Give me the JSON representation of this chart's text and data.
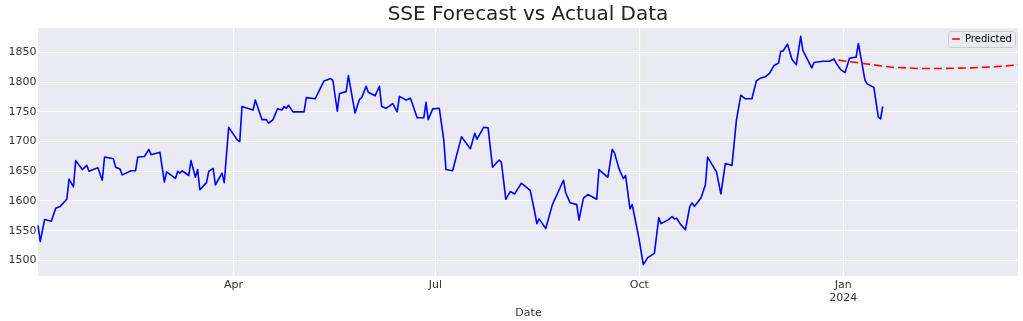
{
  "chart_data": {
    "type": "line",
    "title": "SSE Forecast vs Actual Data",
    "xlabel": "Date",
    "xlim": [
      "2023-01-03",
      "2024-03-20"
    ],
    "ylim": [
      1473,
      1890
    ],
    "xticks": [
      {
        "value": "2023-04-01",
        "label": "Apr"
      },
      {
        "value": "2023-07-01",
        "label": "Jul"
      },
      {
        "value": "2023-10-01",
        "label": "Oct"
      },
      {
        "value": "2024-01-01",
        "label": "Jan\n2024"
      }
    ],
    "yticks": [
      1500,
      1550,
      1600,
      1650,
      1700,
      1750,
      1800,
      1850
    ],
    "grid": true,
    "legend": "top right",
    "marker": "none",
    "series": [
      {
        "color": "#0000ff",
        "line_style": "solid",
        "x": [
          "2023-01-03",
          "2023-01-04",
          "2023-01-06",
          "2023-01-09",
          "2023-01-11",
          "2023-01-13",
          "2023-01-16",
          "2023-01-17",
          "2023-01-19",
          "2023-01-20",
          "2023-01-23",
          "2023-01-25",
          "2023-01-26",
          "2023-01-30",
          "2023-02-01",
          "2023-02-02",
          "2023-02-06",
          "2023-02-07",
          "2023-02-09",
          "2023-02-10",
          "2023-02-14",
          "2023-02-16",
          "2023-02-17",
          "2023-02-20",
          "2023-02-22",
          "2023-02-23",
          "2023-02-27",
          "2023-03-01",
          "2023-03-02",
          "2023-03-06",
          "2023-03-07",
          "2023-03-08",
          "2023-03-09",
          "2023-03-12",
          "2023-03-13",
          "2023-03-15",
          "2023-03-16",
          "2023-03-17",
          "2023-03-20",
          "2023-03-21",
          "2023-03-23",
          "2023-03-24",
          "2023-03-27",
          "2023-03-28",
          "2023-03-30",
          "2023-04-03",
          "2023-04-04",
          "2023-04-05",
          "2023-04-10",
          "2023-04-11",
          "2023-04-14",
          "2023-04-16",
          "2023-04-17",
          "2023-04-19",
          "2023-04-21",
          "2023-04-23",
          "2023-04-24",
          "2023-04-25",
          "2023-04-26",
          "2023-04-28",
          "2023-05-03",
          "2023-05-04",
          "2023-05-08",
          "2023-05-10",
          "2023-05-12",
          "2023-05-15",
          "2023-05-16",
          "2023-05-18",
          "2023-05-19",
          "2023-05-22",
          "2023-05-23",
          "2023-05-26",
          "2023-05-28",
          "2023-05-29",
          "2023-05-31",
          "2023-06-01",
          "2023-06-04",
          "2023-06-06",
          "2023-06-07",
          "2023-06-09",
          "2023-06-12",
          "2023-06-14",
          "2023-06-15",
          "2023-06-18",
          "2023-06-20",
          "2023-06-23",
          "2023-06-26",
          "2023-06-27",
          "2023-06-28",
          "2023-06-30",
          "2023-07-03",
          "2023-07-05",
          "2023-07-06",
          "2023-07-09",
          "2023-07-12",
          "2023-07-13",
          "2023-07-17",
          "2023-07-19",
          "2023-07-20",
          "2023-07-23",
          "2023-07-25",
          "2023-07-27",
          "2023-07-30",
          "2023-07-31",
          "2023-08-02",
          "2023-08-04",
          "2023-08-06",
          "2023-08-09",
          "2023-08-13",
          "2023-08-15",
          "2023-08-16",
          "2023-08-17",
          "2023-08-20",
          "2023-08-23",
          "2023-08-28",
          "2023-08-29",
          "2023-08-31",
          "2023-09-03",
          "2023-09-04",
          "2023-09-06",
          "2023-09-08",
          "2023-09-12",
          "2023-09-13",
          "2023-09-17",
          "2023-09-19",
          "2023-09-20",
          "2023-09-22",
          "2023-09-24",
          "2023-09-25",
          "2023-09-27",
          "2023-09-28",
          "2023-10-01",
          "2023-10-03",
          "2023-10-05",
          "2023-10-08",
          "2023-10-10",
          "2023-10-11",
          "2023-10-14",
          "2023-10-16",
          "2023-10-17",
          "2023-10-18",
          "2023-10-20",
          "2023-10-22",
          "2023-10-24",
          "2023-10-25",
          "2023-10-26",
          "2023-10-29",
          "2023-10-31",
          "2023-11-01",
          "2023-11-05",
          "2023-11-07",
          "2023-11-09",
          "2023-11-12",
          "2023-11-14",
          "2023-11-16",
          "2023-11-18",
          "2023-11-21",
          "2023-11-23",
          "2023-11-25",
          "2023-11-27",
          "2023-11-29",
          "2023-12-01",
          "2023-12-03",
          "2023-12-04",
          "2023-12-05",
          "2023-12-07",
          "2023-12-09",
          "2023-12-11",
          "2023-12-13",
          "2023-12-14",
          "2023-12-18",
          "2023-12-19",
          "2023-12-23",
          "2023-12-26",
          "2023-12-28",
          "2023-12-29",
          "2023-12-31",
          "2024-01-02",
          "2024-01-04",
          "2024-01-07",
          "2024-01-08",
          "2024-01-11",
          "2024-01-12",
          "2024-01-15",
          "2024-01-17",
          "2024-01-18",
          "2024-01-19"
        ],
        "values": [
          1558,
          1531,
          1568,
          1565,
          1587,
          1590,
          1602,
          1636,
          1623,
          1667,
          1652,
          1659,
          1649,
          1655,
          1634,
          1673,
          1670,
          1656,
          1653,
          1643,
          1650,
          1650,
          1673,
          1674,
          1686,
          1677,
          1681,
          1631,
          1648,
          1637,
          1649,
          1646,
          1650,
          1642,
          1667,
          1639,
          1652,
          1618,
          1630,
          1649,
          1654,
          1626,
          1646,
          1630,
          1723,
          1701,
          1699,
          1758,
          1752,
          1769,
          1736,
          1736,
          1730,
          1736,
          1754,
          1752,
          1758,
          1755,
          1760,
          1749,
          1749,
          1773,
          1771,
          1786,
          1801,
          1805,
          1802,
          1750,
          1780,
          1783,
          1810,
          1747,
          1770,
          1773,
          1792,
          1782,
          1776,
          1792,
          1758,
          1755,
          1763,
          1749,
          1775,
          1769,
          1772,
          1739,
          1739,
          1765,
          1736,
          1754,
          1755,
          1702,
          1652,
          1650,
          1693,
          1707,
          1687,
          1713,
          1703,
          1723,
          1722,
          1656,
          1668,
          1664,
          1602,
          1615,
          1611,
          1629,
          1617,
          1581,
          1561,
          1569,
          1553,
          1593,
          1634,
          1613,
          1596,
          1593,
          1567,
          1604,
          1610,
          1602,
          1652,
          1639,
          1686,
          1680,
          1654,
          1637,
          1642,
          1586,
          1593,
          1537,
          1492,
          1504,
          1511,
          1571,
          1561,
          1567,
          1573,
          1569,
          1570,
          1559,
          1551,
          1590,
          1596,
          1590,
          1604,
          1626,
          1673,
          1648,
          1611,
          1662,
          1659,
          1735,
          1777,
          1771,
          1771,
          1801,
          1806,
          1808,
          1814,
          1827,
          1831,
          1851,
          1851,
          1863,
          1838,
          1828,
          1876,
          1852,
          1823,
          1832,
          1834,
          1834,
          1838,
          1831,
          1820,
          1815,
          1839,
          1841,
          1864,
          1802,
          1796,
          1790,
          1740,
          1737,
          1758
        ]
      },
      {
        "name": "Predicted",
        "color": "#ff0000",
        "line_style": "dashed",
        "x": [
          "2023-12-30",
          "2024-01-11",
          "2024-01-23",
          "2024-02-04",
          "2024-02-16",
          "2024-02-28",
          "2024-03-10",
          "2024-03-20"
        ],
        "values": [
          1836,
          1830,
          1824,
          1822,
          1822,
          1823,
          1825,
          1828
        ]
      }
    ]
  }
}
